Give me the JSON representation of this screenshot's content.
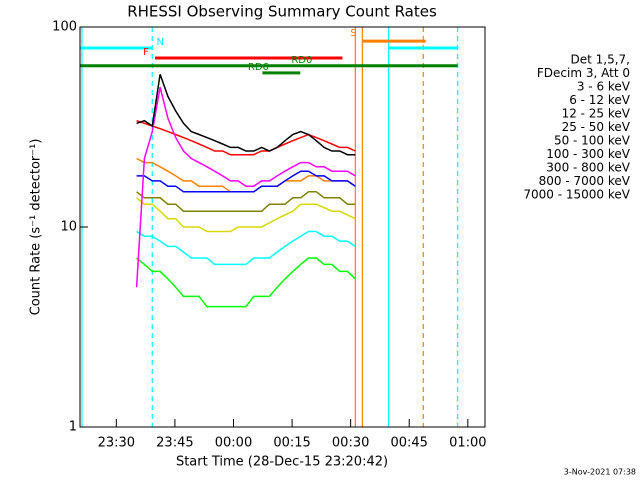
{
  "chart_data": {
    "type": "line",
    "title": "RHESSI Observing Summary Count Rates",
    "xlabel": "Start Time (28-Dec-15 23:20:42)",
    "ylabel": "Count Rate (s⁻¹ detector⁻¹)",
    "legend_header": [
      "Det 1,5,7,",
      "FDecim 3, Att 0"
    ],
    "footer": "3-Nov-2021 07:38",
    "log_y": true,
    "xlim": [
      0,
      103.7
    ],
    "ylim": [
      1,
      100
    ],
    "yticks": [
      1,
      10,
      100
    ],
    "xticks": [
      {
        "value": 9.3,
        "label": "23:30"
      },
      {
        "value": 24.3,
        "label": "23:45"
      },
      {
        "value": 39.3,
        "label": "00:00"
      },
      {
        "value": 54.3,
        "label": "00:15"
      },
      {
        "value": 69.3,
        "label": "00:30"
      },
      {
        "value": 84.3,
        "label": "00:45"
      },
      {
        "value": 99.3,
        "label": "01:00"
      }
    ],
    "x": [
      14.5,
      16.5,
      18.5,
      20.5,
      22.5,
      24.5,
      26.5,
      28.5,
      30.5,
      32.5,
      34.5,
      36.5,
      38.5,
      40.5,
      42.5,
      44.5,
      46.5,
      48.5,
      50.5,
      52.5,
      54.5,
      56.5,
      58.5,
      60.5,
      62.5,
      64.5,
      66.5,
      68.5,
      70.5
    ],
    "series": [
      {
        "name": "3 - 6 keV",
        "color": "#000000",
        "values": [
          33,
          34,
          32,
          58,
          45,
          38,
          33,
          30,
          29,
          28,
          27,
          26,
          25,
          25,
          24,
          24,
          25,
          24,
          25,
          27,
          29,
          30,
          29,
          27,
          25,
          24,
          24,
          23,
          23
        ]
      },
      {
        "name": "6 - 12 keV",
        "color": "#ff00ff",
        "values": [
          5,
          22,
          30,
          50,
          35,
          28,
          24,
          22,
          21,
          20,
          19,
          18,
          17,
          17,
          16,
          16,
          17,
          17,
          18,
          19,
          20,
          21,
          21,
          20,
          20,
          19,
          19,
          19,
          18
        ]
      },
      {
        "name": "12 - 25 keV",
        "color": "#00ff00",
        "values": [
          7,
          6.5,
          6,
          6,
          5.5,
          5,
          4.5,
          4.5,
          4.5,
          4,
          4,
          4,
          4,
          4,
          4,
          4.5,
          4.5,
          4.5,
          5,
          5.5,
          6,
          6.5,
          7,
          7,
          6.5,
          6.5,
          6,
          6,
          5.5
        ]
      },
      {
        "name": "25 - 50 keV",
        "color": "#00ffff",
        "values": [
          9.5,
          9,
          9,
          8.5,
          8,
          8,
          7.5,
          7,
          7,
          7,
          6.5,
          6.5,
          6.5,
          6.5,
          6.5,
          7,
          7,
          7,
          7.5,
          8,
          8.5,
          9,
          9.5,
          9.5,
          9,
          9,
          8.5,
          8.5,
          8
        ]
      },
      {
        "name": "50 - 100 keV",
        "color": "#d8d800",
        "values": [
          14,
          13,
          13,
          12,
          11,
          11,
          10,
          10,
          10,
          9.5,
          9.5,
          9.5,
          9.5,
          10,
          10,
          10,
          10,
          10.5,
          11,
          11.5,
          12,
          13,
          13,
          13,
          12.5,
          12,
          12,
          11.5,
          11
        ]
      },
      {
        "name": "100 - 300 keV",
        "color": "#ff0000",
        "values": [
          34,
          33,
          32,
          31,
          30,
          29,
          28,
          27,
          26,
          25,
          24,
          24,
          23,
          23,
          23,
          23,
          24,
          24,
          25,
          26,
          27,
          28,
          29,
          28,
          27,
          26,
          25,
          25,
          24
        ]
      },
      {
        "name": "300 - 800 keV",
        "color": "#0000ff",
        "values": [
          18,
          18,
          17,
          17,
          16,
          16,
          15,
          15,
          15,
          15,
          15,
          15,
          15,
          15,
          15,
          15,
          16,
          16,
          16,
          17,
          18,
          19,
          19,
          18,
          18,
          17,
          17,
          17,
          16
        ]
      },
      {
        "name": "800 - 7000 keV",
        "color": "#ff8000",
        "values": [
          22,
          21,
          21,
          20,
          19,
          18,
          17,
          17,
          16,
          16,
          16,
          16,
          15,
          15,
          15,
          15,
          16,
          16,
          16,
          17,
          17,
          17,
          18,
          18,
          17,
          17,
          17,
          17,
          16
        ]
      },
      {
        "name": "7000 - 15000 keV",
        "color": "#808000",
        "values": [
          15,
          14,
          14,
          14,
          13,
          13,
          12,
          12,
          12,
          12,
          12,
          12,
          12,
          12,
          12,
          12,
          12,
          13,
          13,
          13,
          14,
          14,
          15,
          15,
          14,
          14,
          14,
          13,
          13
        ]
      }
    ],
    "flags": [
      {
        "label": "N",
        "color": "#00ffff",
        "y": 78.5,
        "segments": [
          [
            0,
            18.5
          ],
          [
            79,
            96.7
          ]
        ]
      },
      {
        "label": "F",
        "color": "#ff0000",
        "y": 70,
        "segments": [
          [
            19.2,
            67.2
          ]
        ]
      },
      {
        "label": "S",
        "color": "#ff8000",
        "y": 85,
        "segments": [
          [
            72.3,
            88.5
          ]
        ]
      },
      {
        "label": "RD0",
        "color": "#008000",
        "y": 64,
        "segments": [
          [
            0,
            96.7
          ]
        ]
      },
      {
        "label": "RD6",
        "color": "#008000",
        "y": 59,
        "segments": [
          [
            46.7,
            56.4
          ]
        ]
      }
    ],
    "vlines": [
      {
        "x": 0.5,
        "color": "#00ffff",
        "dashed": false
      },
      {
        "x": 18.5,
        "color": "#00ffff",
        "dashed": true
      },
      {
        "x": 79,
        "color": "#00ffff",
        "dashed": false
      },
      {
        "x": 96.7,
        "color": "#00ffff",
        "dashed": true
      },
      {
        "x": 70.5,
        "color": "#ff8000",
        "dashed": false
      },
      {
        "x": 72.3,
        "color": "#ff8000",
        "dashed": false
      },
      {
        "x": 87.9,
        "color": "#ff8000",
        "dashed": true
      }
    ]
  }
}
